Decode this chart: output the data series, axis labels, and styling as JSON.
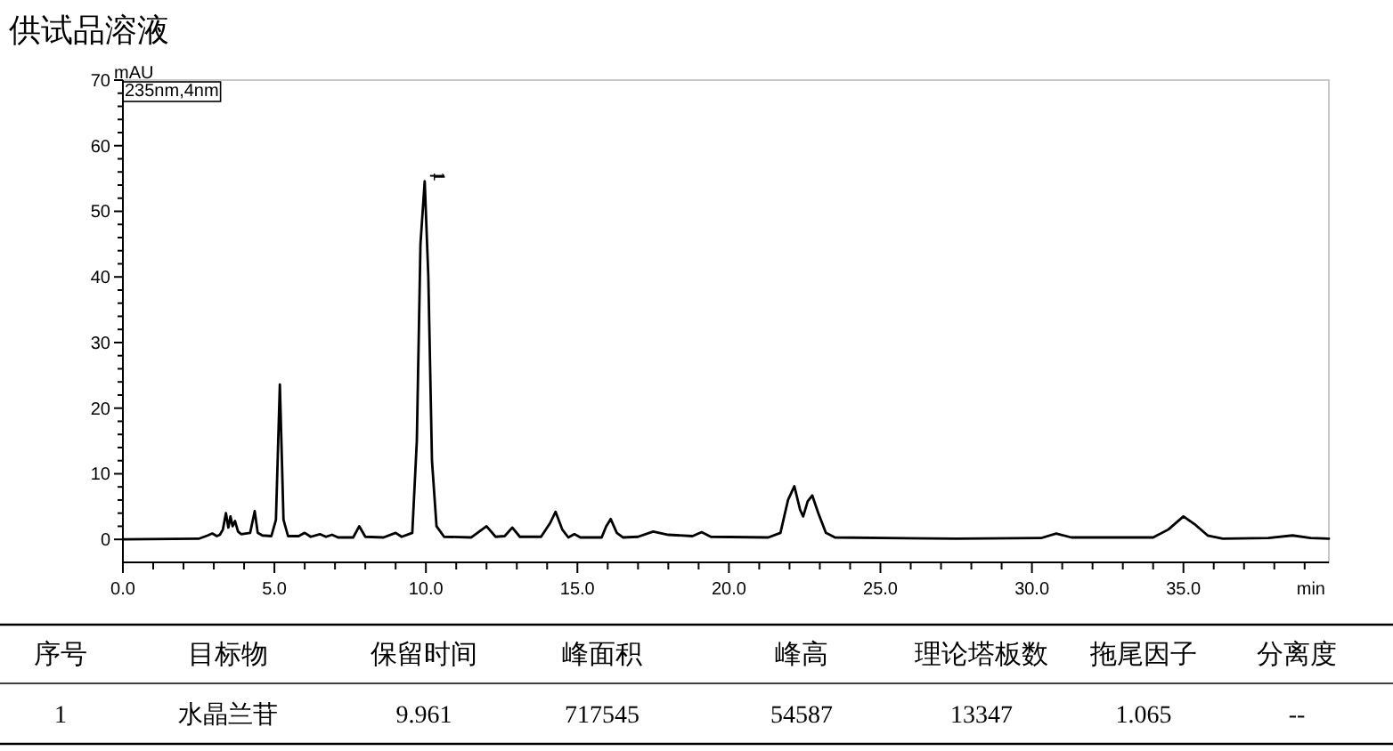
{
  "chart_data": {
    "type": "line",
    "title": "供试品溶液",
    "ylabel": "mAU",
    "xlabel": "min",
    "grid": false,
    "xlim": [
      0,
      39.8
    ],
    "ylim": [
      -3.5,
      70
    ],
    "xticks": [
      {
        "value": 0,
        "label": "0.0"
      },
      {
        "value": 1,
        "label": null
      },
      {
        "value": 2,
        "label": null
      },
      {
        "value": 3,
        "label": null
      },
      {
        "value": 4,
        "label": null
      },
      {
        "value": 5,
        "label": "5.0"
      },
      {
        "value": 6,
        "label": null
      },
      {
        "value": 7,
        "label": null
      },
      {
        "value": 8,
        "label": null
      },
      {
        "value": 9,
        "label": null
      },
      {
        "value": 10,
        "label": "10.0"
      },
      {
        "value": 11,
        "label": null
      },
      {
        "value": 12,
        "label": null
      },
      {
        "value": 13,
        "label": null
      },
      {
        "value": 14,
        "label": null
      },
      {
        "value": 15,
        "label": "15.0"
      },
      {
        "value": 16,
        "label": null
      },
      {
        "value": 17,
        "label": null
      },
      {
        "value": 18,
        "label": null
      },
      {
        "value": 19,
        "label": null
      },
      {
        "value": 20,
        "label": "20.0"
      },
      {
        "value": 21,
        "label": null
      },
      {
        "value": 22,
        "label": null
      },
      {
        "value": 23,
        "label": null
      },
      {
        "value": 24,
        "label": null
      },
      {
        "value": 25,
        "label": "25.0"
      },
      {
        "value": 26,
        "label": null
      },
      {
        "value": 27,
        "label": null
      },
      {
        "value": 28,
        "label": null
      },
      {
        "value": 29,
        "label": null
      },
      {
        "value": 30,
        "label": "30.0"
      },
      {
        "value": 31,
        "label": null
      },
      {
        "value": 32,
        "label": null
      },
      {
        "value": 33,
        "label": null
      },
      {
        "value": 34,
        "label": null
      },
      {
        "value": 35,
        "label": "35.0"
      },
      {
        "value": 36,
        "label": null
      },
      {
        "value": 37,
        "label": null
      },
      {
        "value": 38,
        "label": null
      },
      {
        "value": 39,
        "label": null
      }
    ],
    "yticks": [
      0,
      {
        "value": 2,
        "label": null
      },
      {
        "value": 4,
        "label": null
      },
      {
        "value": 6,
        "label": null
      },
      {
        "value": 8,
        "label": null
      },
      10,
      {
        "value": 12,
        "label": null
      },
      {
        "value": 14,
        "label": null
      },
      {
        "value": 16,
        "label": null
      },
      {
        "value": 18,
        "label": null
      },
      20,
      {
        "value": 22,
        "label": null
      },
      {
        "value": 24,
        "label": null
      },
      {
        "value": 26,
        "label": null
      },
      {
        "value": 28,
        "label": null
      },
      30,
      {
        "value": 32,
        "label": null
      },
      {
        "value": 34,
        "label": null
      },
      {
        "value": 36,
        "label": null
      },
      {
        "value": 38,
        "label": null
      },
      40,
      {
        "value": 42,
        "label": null
      },
      {
        "value": 44,
        "label": null
      },
      {
        "value": 46,
        "label": null
      },
      {
        "value": 48,
        "label": null
      },
      50,
      {
        "value": 52,
        "label": null
      },
      {
        "value": 54,
        "label": null
      },
      {
        "value": 56,
        "label": null
      },
      {
        "value": 58,
        "label": null
      },
      60,
      {
        "value": 62,
        "label": null
      },
      {
        "value": 64,
        "label": null
      },
      {
        "value": 66,
        "label": null
      },
      {
        "value": 68,
        "label": null
      },
      70
    ],
    "series": [
      {
        "color": "#000000",
        "x": [
          0,
          2.5,
          2.8,
          2.95,
          3.1,
          3.2,
          3.3,
          3.4,
          3.48,
          3.55,
          3.62,
          3.7,
          3.8,
          3.9,
          4.2,
          4.35,
          4.45,
          4.6,
          4.9,
          5.05,
          5.18,
          5.3,
          5.45,
          5.8,
          6.0,
          6.2,
          6.5,
          6.7,
          6.9,
          7.1,
          7.6,
          7.8,
          8.0,
          8.6,
          9.0,
          9.2,
          9.55,
          9.7,
          9.82,
          9.96,
          10.08,
          10.2,
          10.35,
          10.6,
          11.5,
          12.0,
          12.3,
          12.6,
          12.85,
          13.1,
          13.8,
          14.1,
          14.28,
          14.5,
          14.7,
          14.9,
          15.1,
          15.8,
          15.95,
          16.1,
          16.3,
          16.5,
          17.0,
          17.5,
          18.0,
          18.8,
          19.1,
          19.4,
          21.3,
          21.7,
          21.95,
          22.16,
          22.35,
          22.45,
          22.6,
          22.75,
          22.95,
          23.2,
          23.5,
          27.5,
          30.3,
          30.8,
          31.3,
          34.0,
          34.5,
          35.0,
          35.4,
          35.8,
          36.3,
          37.8,
          38.6,
          39.2,
          39.8
        ],
        "values": [
          0,
          0.1,
          0.6,
          0.9,
          0.5,
          0.7,
          1.5,
          4.0,
          1.8,
          3.5,
          2.0,
          2.8,
          1.2,
          0.8,
          1.0,
          4.3,
          1.0,
          0.6,
          0.5,
          3,
          23.6,
          3,
          0.5,
          0.5,
          1.0,
          0.4,
          0.8,
          0.4,
          0.7,
          0.3,
          0.3,
          2.0,
          0.4,
          0.3,
          1.0,
          0.4,
          1,
          15,
          45,
          54.6,
          40,
          12,
          2,
          0.4,
          0.3,
          2.0,
          0.4,
          0.5,
          1.8,
          0.4,
          0.4,
          2.5,
          4.2,
          1.5,
          0.3,
          0.8,
          0.3,
          0.3,
          2,
          3.1,
          1,
          0.3,
          0.4,
          1.2,
          0.7,
          0.5,
          1.1,
          0.4,
          0.3,
          1,
          6,
          8.1,
          4.5,
          3.5,
          5.8,
          6.7,
          4,
          1,
          0.3,
          0.1,
          0.2,
          0.9,
          0.3,
          0.3,
          1.5,
          3.5,
          2.2,
          0.6,
          0.1,
          0.2,
          0.6,
          0.2,
          0.1
        ]
      }
    ],
    "annotations": [
      "235nm,4nm",
      {
        "text": "1",
        "x": 9.96,
        "y": 54.6
      },
      "序号",
      "目标物",
      "保留时间",
      "峰面积",
      "峰高",
      "理论塔板数",
      "拖尾因子",
      "分离度",
      "1",
      "水晶兰苷",
      "9.961",
      "717545",
      "54587",
      "13347",
      "1.065",
      "--"
    ]
  }
}
